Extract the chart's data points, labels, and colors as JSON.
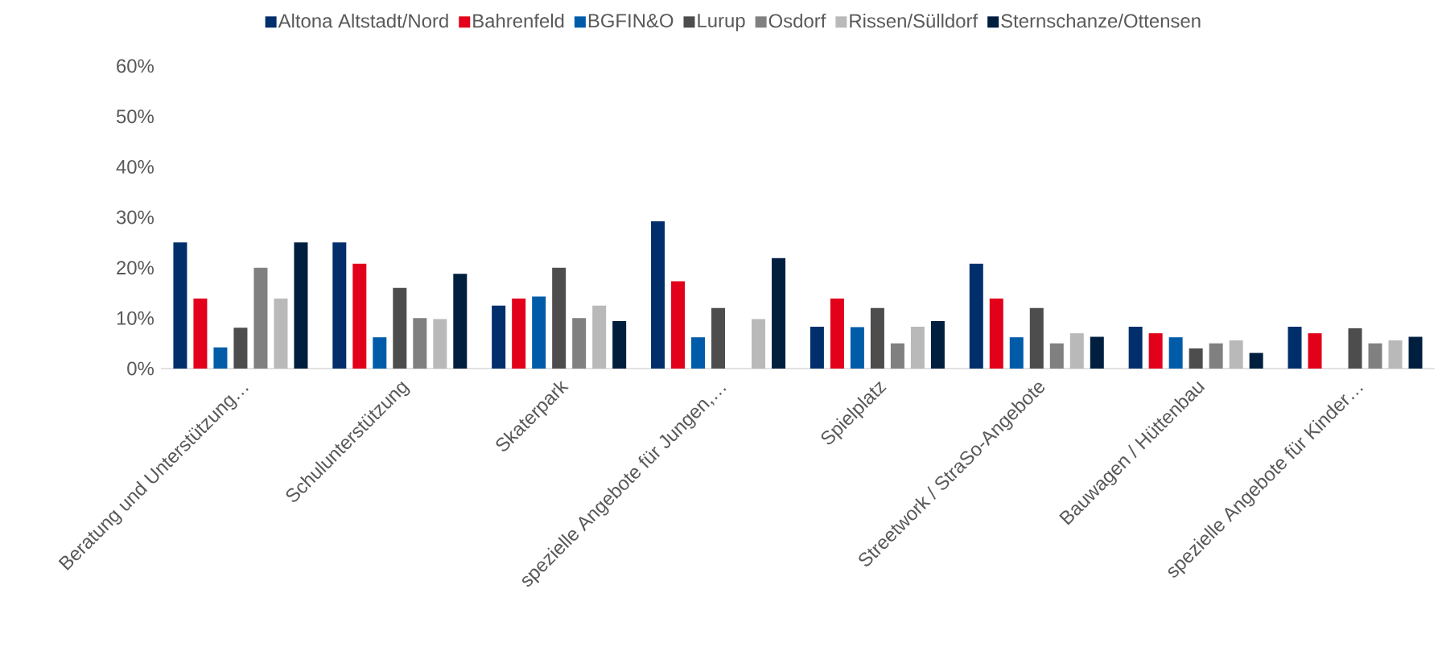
{
  "chart_data": {
    "type": "bar",
    "categories": [
      "Beratung und Unterstützung…",
      "Schulunterstützung",
      "Skaterpark",
      "spezielle Angebote für Jungen,…",
      "Spielplatz",
      "Streetwork / StraSo-Angebote",
      "Bauwagen / Hüttenbau",
      "spezielle Angebote für Kinder…"
    ],
    "series": [
      {
        "name": "Altona Altstadt/Nord",
        "color": "#002f6c",
        "values": [
          25,
          25,
          12.5,
          29.2,
          8.3,
          20.8,
          8.3,
          8.3
        ]
      },
      {
        "name": "Bahrenfeld",
        "color": "#e2001a",
        "values": [
          13.9,
          20.8,
          13.9,
          17.3,
          13.9,
          13.9,
          7,
          7
        ]
      },
      {
        "name": "BGFIN&O",
        "color": "#005ca9",
        "values": [
          4.2,
          6.2,
          14.3,
          6.2,
          8.2,
          6.2,
          6.2,
          null
        ]
      },
      {
        "name": "Lurup",
        "color": "#4d4d4d",
        "values": [
          8.1,
          16,
          20,
          12,
          12,
          12,
          4,
          8
        ]
      },
      {
        "name": "Osdorf",
        "color": "#808080",
        "values": [
          20,
          10,
          10,
          null,
          5,
          5,
          5,
          5
        ]
      },
      {
        "name": "Rissen/Sülldorf",
        "color": "#b9b9b9",
        "values": [
          13.9,
          9.8,
          12.5,
          9.8,
          8.3,
          7,
          5.6,
          5.6
        ]
      },
      {
        "name": "Sternschanze/Ottensen",
        "color": "#001f3f",
        "values": [
          25,
          18.8,
          9.4,
          21.9,
          9.4,
          6.3,
          3.1,
          6.3
        ]
      }
    ],
    "ylim": [
      0,
      60
    ],
    "yticks": [
      {
        "value": 0,
        "label": "0%"
      },
      {
        "value": 10,
        "label": "10%"
      },
      {
        "value": 20,
        "label": "20%"
      },
      {
        "value": 30,
        "label": "30%"
      },
      {
        "value": 40,
        "label": "40%"
      },
      {
        "value": 50,
        "label": "50%"
      },
      {
        "value": 60,
        "label": "60%"
      }
    ],
    "legend": "top"
  }
}
